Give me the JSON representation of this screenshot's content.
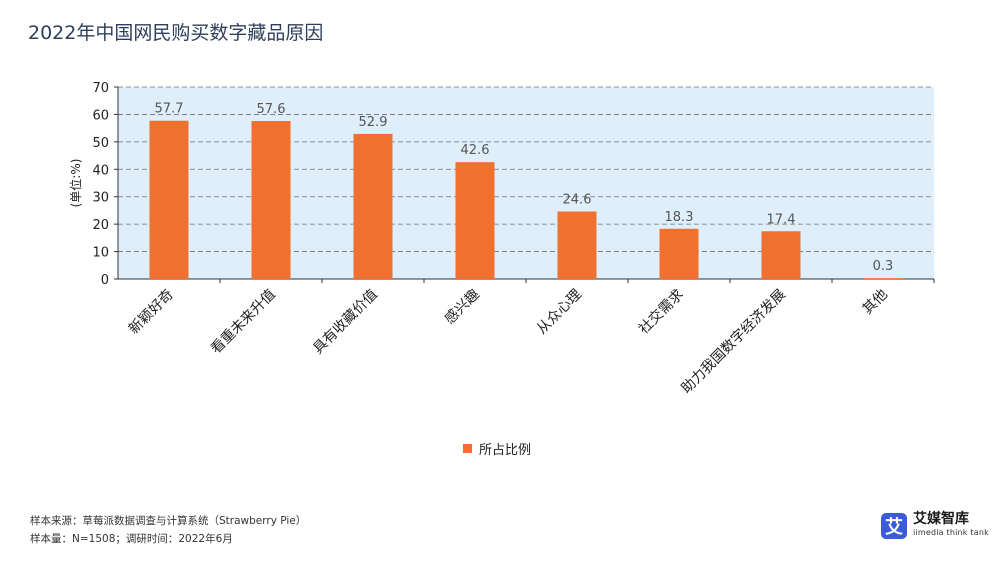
{
  "title": "2022年中国网民购买数字藏品原因",
  "chart_data": {
    "type": "bar",
    "ylabel": "(单位:%)",
    "ylim": [
      0,
      70
    ],
    "yticks": [
      0,
      10,
      20,
      30,
      40,
      50,
      60,
      70
    ],
    "grid": true,
    "legend_position": "bottom",
    "categories": [
      "新颖好奇",
      "看重未来升值",
      "具有收藏价值",
      "感兴趣",
      "从众心理",
      "社交需求",
      "助力我国数字经济发展",
      "其他"
    ],
    "series": [
      {
        "name": "所占比例",
        "values": [
          57.7,
          57.6,
          52.9,
          42.6,
          24.6,
          18.3,
          17.4,
          0.3
        ],
        "color": "#f07030"
      }
    ],
    "plot_background": "#dfeefb"
  },
  "notes": {
    "line1": "样本来源：草莓派数据调查与计算系统（Strawberry Pie）",
    "line2": "样本量：N=1508；调研时间：2022年6月"
  },
  "brand": {
    "mark": "艾",
    "name": "艾媒智库",
    "sub": "iimedia think tank"
  }
}
